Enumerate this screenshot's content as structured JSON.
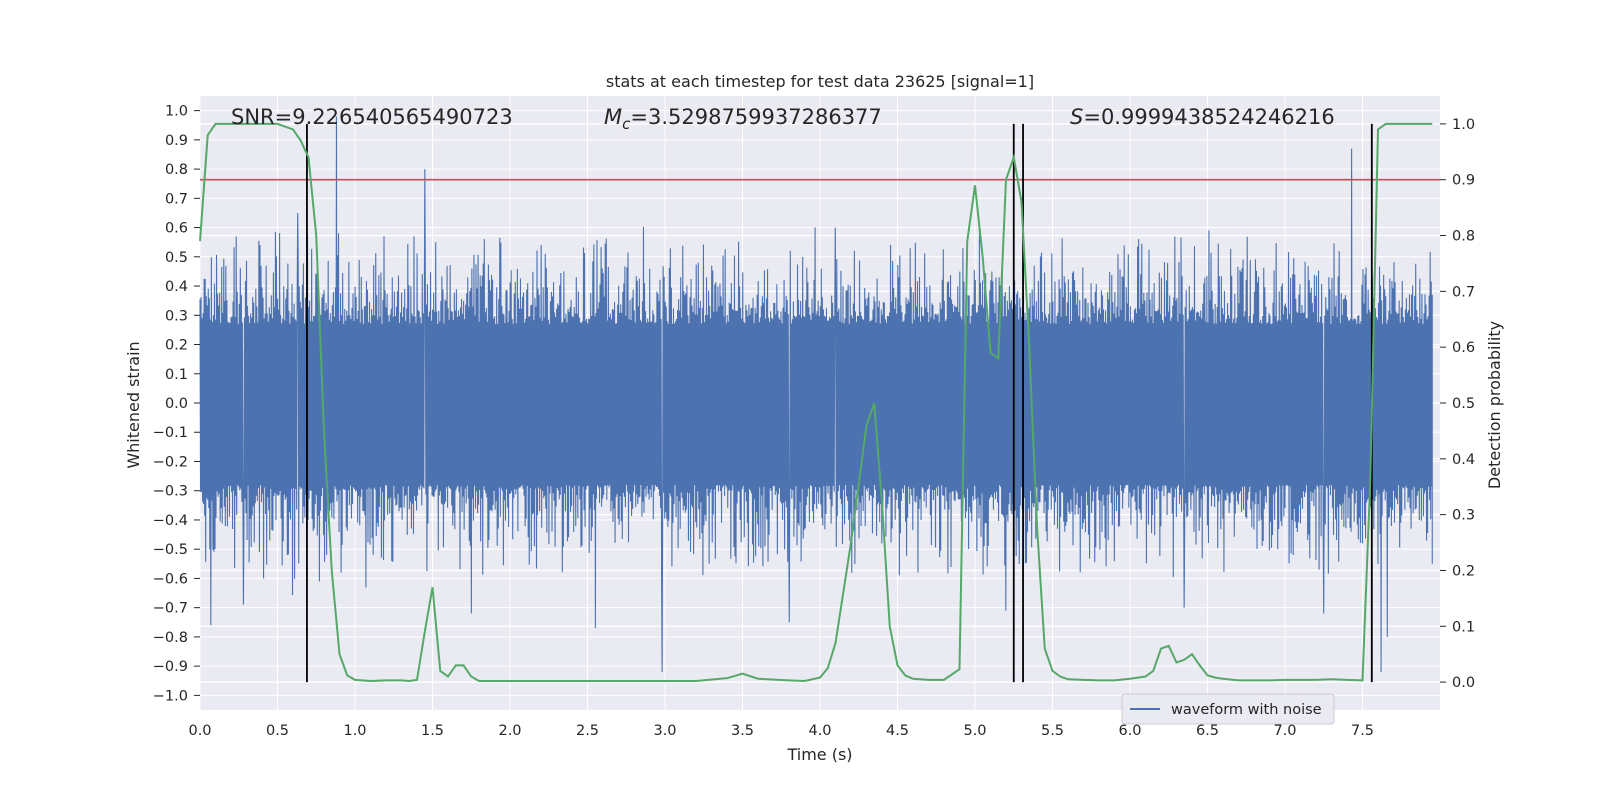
{
  "chart_data": {
    "type": "line",
    "title": "stats at each timestep for test data 23625 [signal=1]",
    "xlabel": "Time (s)",
    "ylabel_left": "Whitened strain",
    "ylabel_right": "Detection probability",
    "xlim": [
      0.0,
      8.0
    ],
    "ylim_left": [
      -1.05,
      1.05
    ],
    "ylim_right": [
      -0.05,
      1.05
    ],
    "x_ticks": [
      "0.0",
      "0.5",
      "1.0",
      "1.5",
      "2.0",
      "2.5",
      "3.0",
      "3.5",
      "4.0",
      "4.5",
      "5.0",
      "5.5",
      "6.0",
      "6.5",
      "7.0",
      "7.5"
    ],
    "y_ticks_left": [
      "1.0",
      "0.9",
      "0.8",
      "0.7",
      "0.6",
      "0.5",
      "0.4",
      "0.3",
      "0.2",
      "0.1",
      "0.0",
      "−0.1",
      "−0.2",
      "−0.3",
      "−0.4",
      "−0.5",
      "−0.6",
      "−0.7",
      "−0.8",
      "−0.9",
      "−1.0"
    ],
    "y_ticks_right": [
      "1.0",
      "0.9",
      "0.8",
      "0.7",
      "0.6",
      "0.5",
      "0.4",
      "0.3",
      "0.2",
      "0.1",
      "0.0"
    ],
    "grid": true,
    "annotations": {
      "snr": "SNR=9.226540565490723",
      "mc_symbol": "M",
      "mc_sub": "c",
      "mc_value": "=3.5298759937286377",
      "s_symbol": "S",
      "s_value": "=0.9999438524246216"
    },
    "legend": {
      "placement": "lower-right",
      "entries": [
        "waveform with noise"
      ]
    },
    "threshold_line": {
      "value": 0.9,
      "axis": "right",
      "color": "#c44e52"
    },
    "vertical_markers": [
      0.69,
      5.25,
      5.31,
      7.56
    ],
    "waveform": {
      "name": "waveform with noise",
      "color": "#4c72b0",
      "noise_band": [
        -0.28,
        0.27
      ],
      "peaks": [
        {
          "x": 0.07,
          "y": -0.76
        },
        {
          "x": 0.28,
          "y": -0.69
        },
        {
          "x": 0.41,
          "y": -0.6
        },
        {
          "x": 0.63,
          "y": 0.65
        },
        {
          "x": 0.88,
          "y": 0.98
        },
        {
          "x": 0.91,
          "y": -0.58
        },
        {
          "x": 0.77,
          "y": -0.61
        },
        {
          "x": 1.45,
          "y": 0.8
        },
        {
          "x": 1.52,
          "y": 0.55
        },
        {
          "x": 1.75,
          "y": -0.72
        },
        {
          "x": 2.55,
          "y": -0.77
        },
        {
          "x": 2.98,
          "y": -0.92
        },
        {
          "x": 3.8,
          "y": -0.75
        },
        {
          "x": 4.1,
          "y": 0.6
        },
        {
          "x": 5.2,
          "y": -0.71
        },
        {
          "x": 6.35,
          "y": -0.7
        },
        {
          "x": 7.25,
          "y": -0.72
        },
        {
          "x": 7.43,
          "y": 0.87
        },
        {
          "x": 7.62,
          "y": -0.92
        },
        {
          "x": 7.66,
          "y": -0.8
        },
        {
          "x": 7.97,
          "y": -0.55
        }
      ]
    },
    "detection_probability": {
      "color": "#55a868",
      "x": [
        0.0,
        0.05,
        0.1,
        0.15,
        0.2,
        0.3,
        0.4,
        0.5,
        0.6,
        0.65,
        0.7,
        0.75,
        0.8,
        0.85,
        0.9,
        0.95,
        1.0,
        1.1,
        1.2,
        1.3,
        1.35,
        1.4,
        1.45,
        1.5,
        1.55,
        1.6,
        1.65,
        1.7,
        1.75,
        1.8,
        1.85,
        1.9,
        2.0,
        2.5,
        3.0,
        3.2,
        3.4,
        3.5,
        3.6,
        3.8,
        3.9,
        4.0,
        4.05,
        4.1,
        4.2,
        4.3,
        4.35,
        4.4,
        4.45,
        4.5,
        4.55,
        4.6,
        4.7,
        4.8,
        4.9,
        4.95,
        5.0,
        5.05,
        5.1,
        5.15,
        5.2,
        5.25,
        5.3,
        5.35,
        5.4,
        5.45,
        5.5,
        5.55,
        5.6,
        5.7,
        5.8,
        5.9,
        6.0,
        6.05,
        6.1,
        6.15,
        6.2,
        6.25,
        6.3,
        6.35,
        6.4,
        6.45,
        6.5,
        6.55,
        6.6,
        6.7,
        6.8,
        6.9,
        7.0,
        7.1,
        7.2,
        7.3,
        7.4,
        7.5,
        7.55,
        7.6,
        7.65,
        7.7,
        7.8,
        7.9,
        7.95
      ],
      "y": [
        0.79,
        0.98,
        1.0,
        1.0,
        1.0,
        1.0,
        1.0,
        1.0,
        0.99,
        0.97,
        0.94,
        0.8,
        0.45,
        0.2,
        0.05,
        0.012,
        0.004,
        0.002,
        0.003,
        0.003,
        0.002,
        0.004,
        0.09,
        0.17,
        0.02,
        0.01,
        0.03,
        0.03,
        0.01,
        0.002,
        0.002,
        0.002,
        0.002,
        0.002,
        0.002,
        0.002,
        0.007,
        0.015,
        0.006,
        0.003,
        0.002,
        0.008,
        0.025,
        0.07,
        0.25,
        0.46,
        0.5,
        0.32,
        0.1,
        0.03,
        0.012,
        0.006,
        0.004,
        0.004,
        0.023,
        0.79,
        0.89,
        0.76,
        0.59,
        0.58,
        0.9,
        0.94,
        0.86,
        0.6,
        0.28,
        0.06,
        0.02,
        0.01,
        0.005,
        0.004,
        0.003,
        0.003,
        0.006,
        0.008,
        0.01,
        0.02,
        0.06,
        0.065,
        0.035,
        0.04,
        0.05,
        0.03,
        0.012,
        0.008,
        0.006,
        0.003,
        0.003,
        0.003,
        0.004,
        0.004,
        0.004,
        0.005,
        0.004,
        0.003,
        0.36,
        0.99,
        1.0,
        1.0,
        1.0,
        1.0,
        1.0
      ]
    }
  }
}
